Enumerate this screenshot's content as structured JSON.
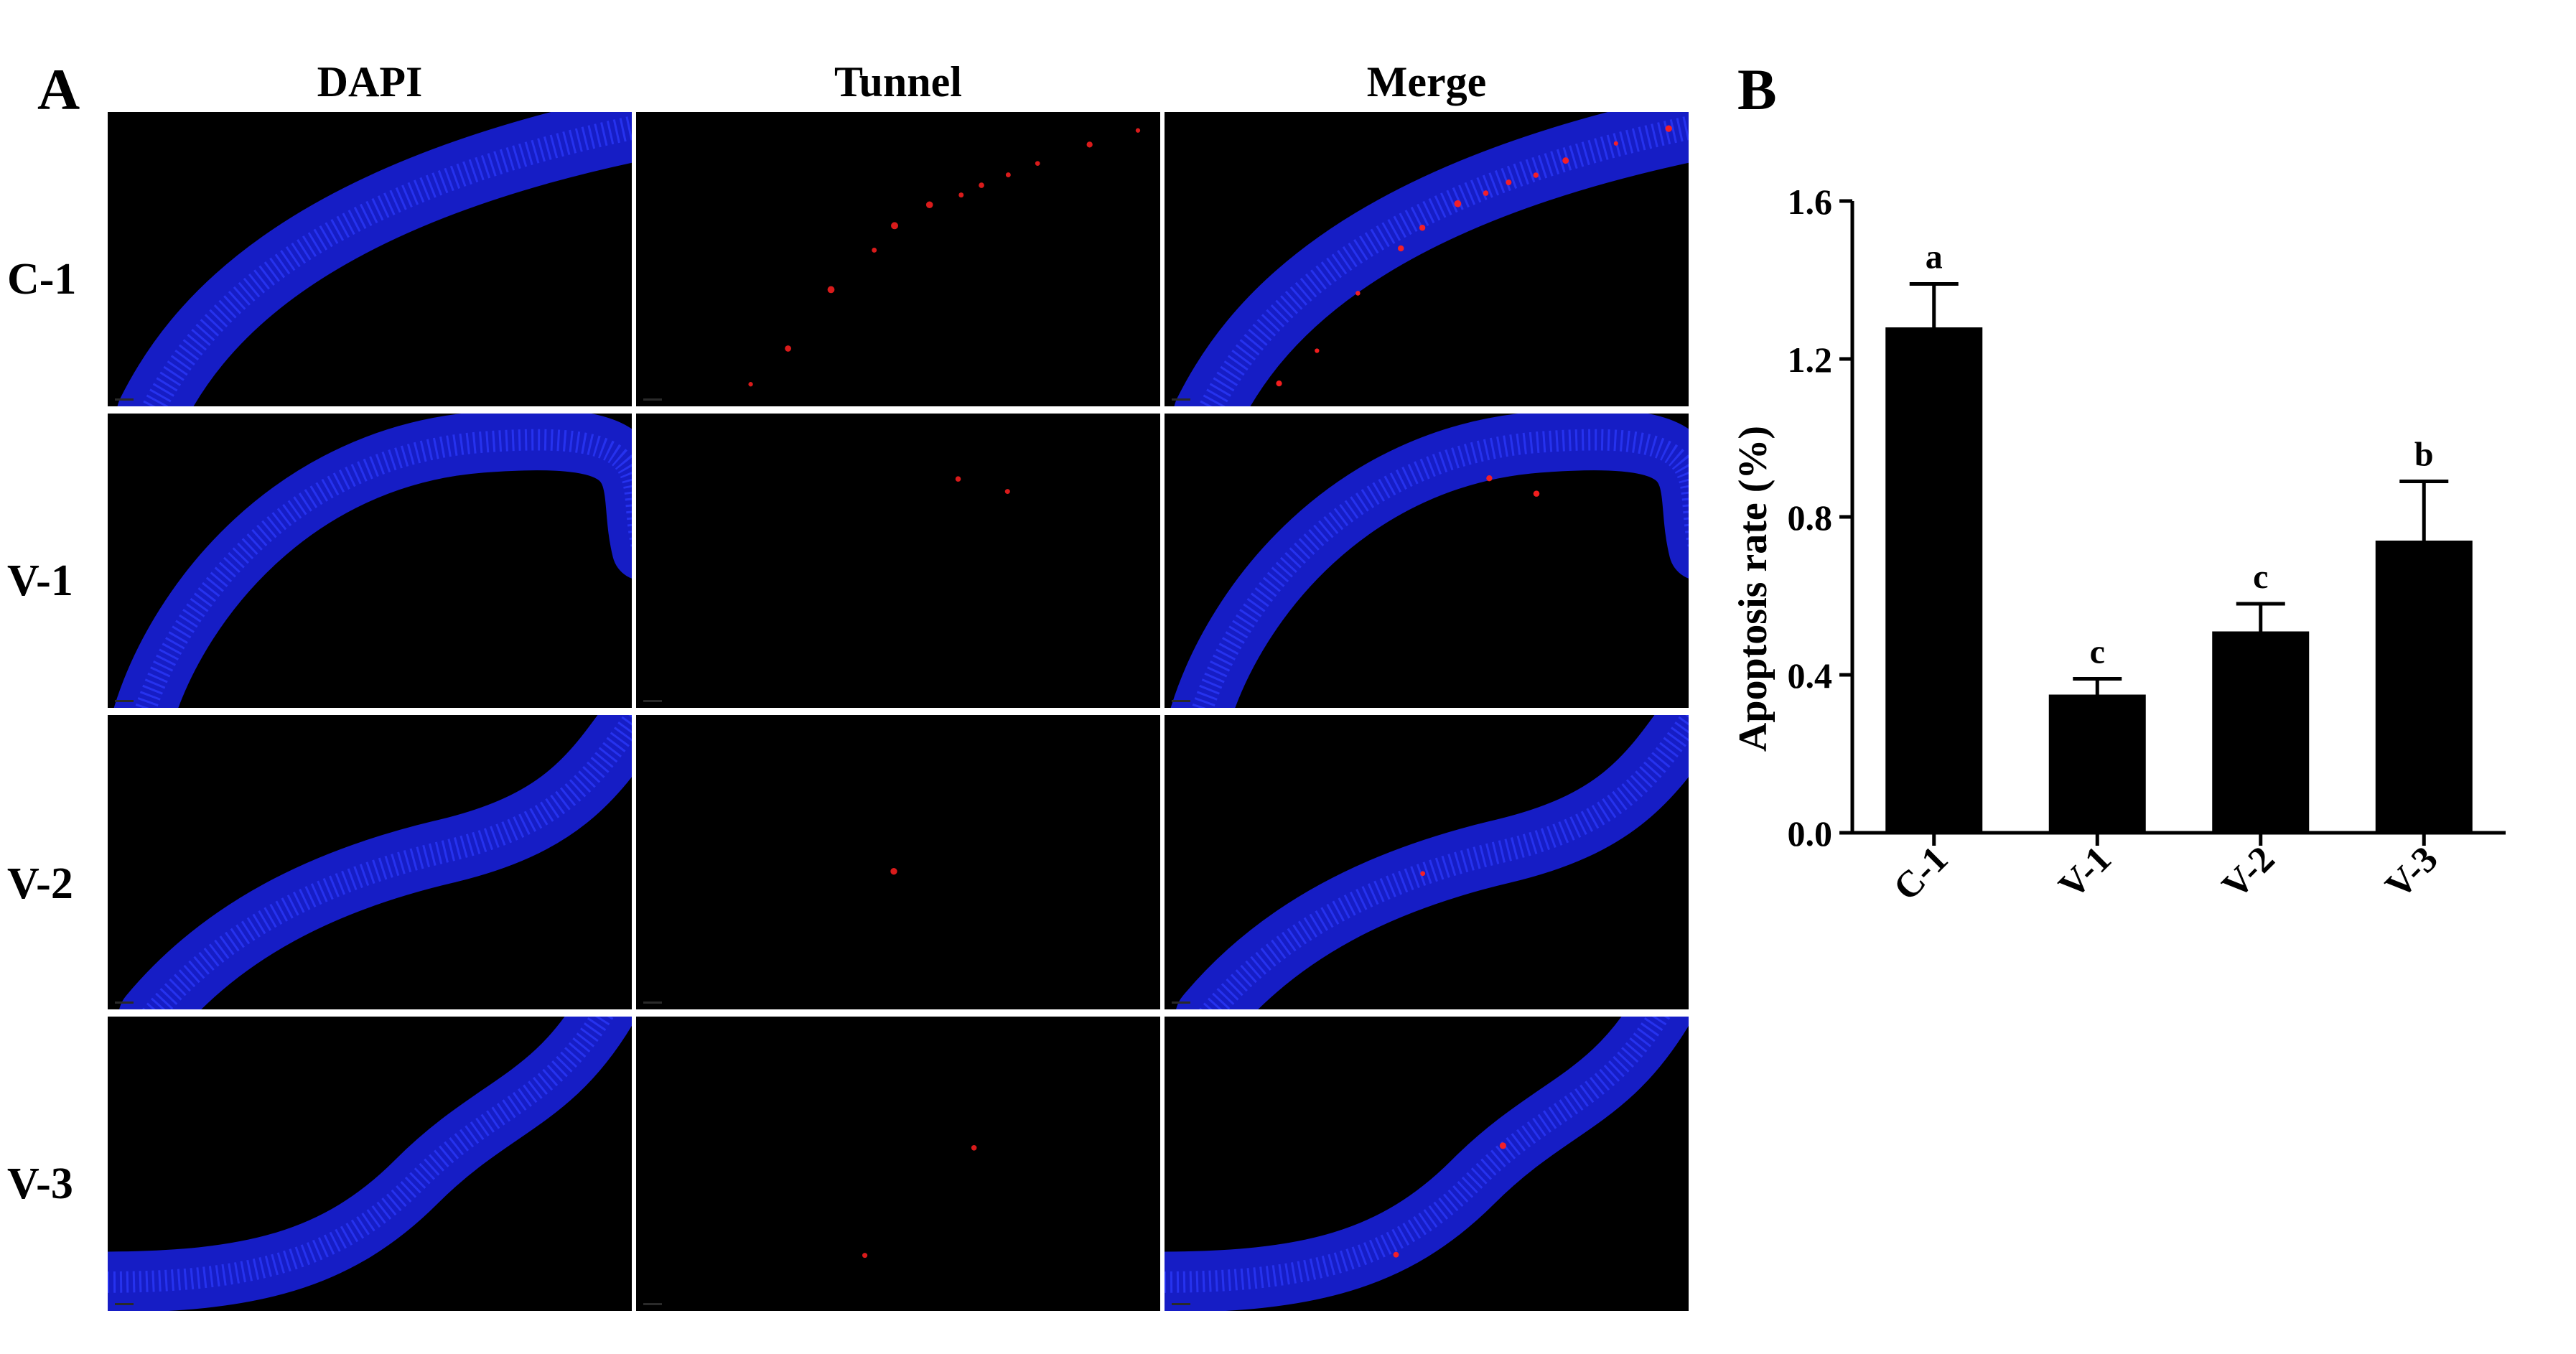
{
  "panel_a": {
    "letter": "A",
    "columns": [
      "DAPI",
      "Tunnel",
      "Merge"
    ],
    "rows": [
      "C-1",
      "V-1",
      "V-2",
      "V-3"
    ]
  },
  "panel_b": {
    "letter": "B"
  },
  "colors": {
    "nuclei": "#1a22e8",
    "apoptotic": "#ff2020",
    "background": "#000000",
    "bar": "#000000"
  },
  "chart_data": {
    "type": "bar",
    "categories": [
      "C-1",
      "V-1",
      "V-2",
      "V-3"
    ],
    "values": [
      1.28,
      0.35,
      0.51,
      0.74
    ],
    "errors": [
      0.11,
      0.04,
      0.07,
      0.15
    ],
    "significance_labels": [
      "a",
      "c",
      "c",
      "b"
    ],
    "ylabel": "Apoptosis rate (%)",
    "xlabel": "",
    "ylim": [
      0,
      1.6
    ],
    "yticks": [
      0.0,
      0.4,
      0.8,
      1.2,
      1.6
    ],
    "ytick_labels": [
      "0.0",
      "0.4",
      "0.8",
      "1.2",
      "1.6"
    ],
    "grid": false
  }
}
